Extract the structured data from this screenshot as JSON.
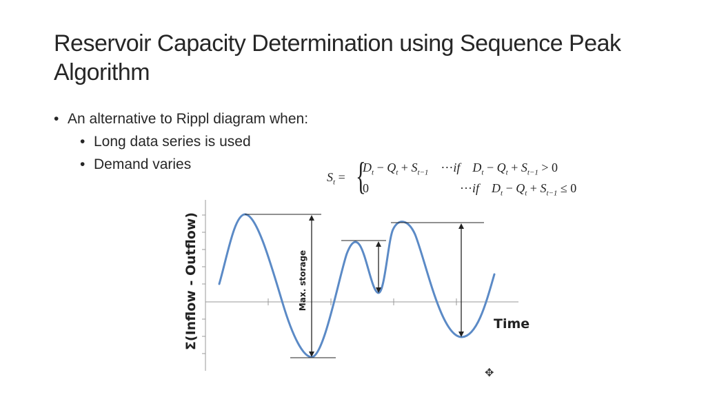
{
  "slide": {
    "title": "Reservoir Capacity Determination using Sequence Peak Algorithm",
    "bullet_1": "An alternative to Rippl diagram when:",
    "sub_bullets": [
      "Long data series is used",
      "Demand varies"
    ]
  },
  "formula": {
    "lhs": "S",
    "lhs_sub": "t",
    "equals": "=",
    "case1_expr": "D",
    "case2_expr": "0",
    "cond_word": "if",
    "ellipsis": "···"
  },
  "diagram": {
    "y_axis_label": "Σ(Inflow - Outflow)",
    "x_axis_label": "Time",
    "annotation": "Max. storage",
    "curve_color": "#5b8ac6",
    "line_color": "#222222"
  }
}
